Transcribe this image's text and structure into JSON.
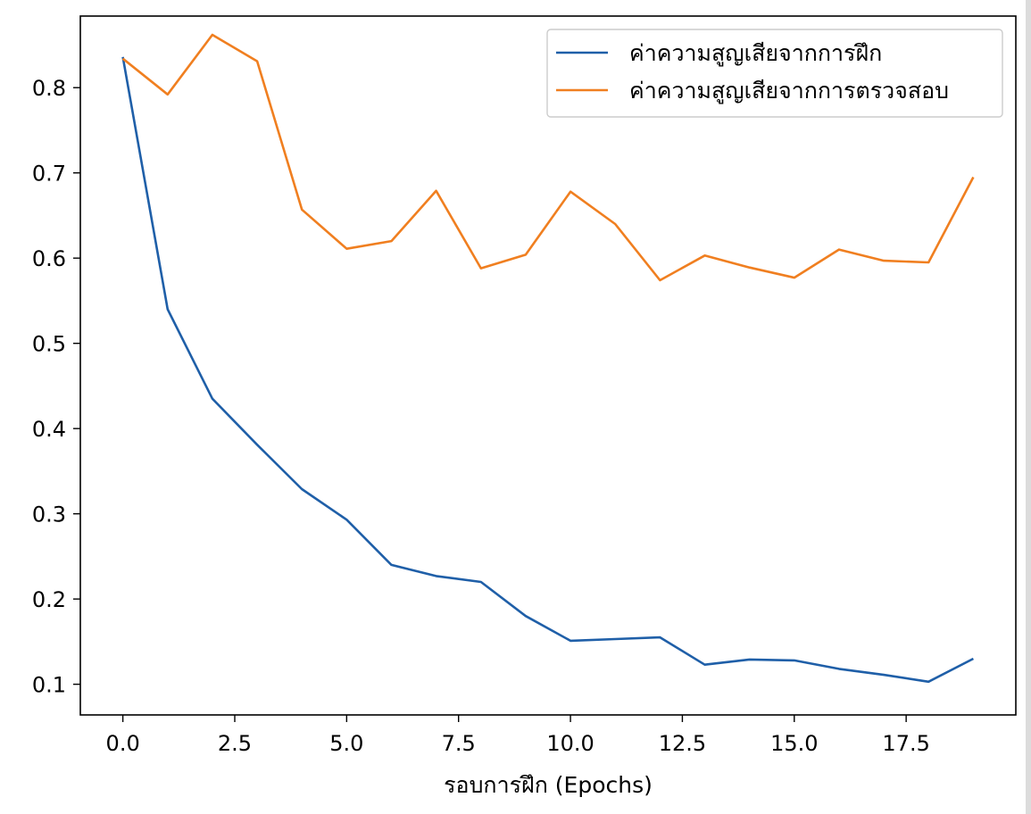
{
  "chart_data": {
    "type": "line",
    "title": "",
    "xlabel": "รอบการฝึก (Epochs)",
    "ylabel": "",
    "xlim": [
      -0.95,
      19.95
    ],
    "ylim": [
      0.064,
      0.884
    ],
    "x_ticks": [
      "0.0",
      "2.5",
      "5.0",
      "7.5",
      "10.0",
      "12.5",
      "15.0",
      "17.5"
    ],
    "x_tick_values": [
      0,
      2.5,
      5,
      7.5,
      10,
      12.5,
      15,
      17.5
    ],
    "y_ticks": [
      "0.1",
      "0.2",
      "0.3",
      "0.4",
      "0.5",
      "0.6",
      "0.7",
      "0.8"
    ],
    "y_tick_values": [
      0.1,
      0.2,
      0.3,
      0.4,
      0.5,
      0.6,
      0.7,
      0.8
    ],
    "grid": false,
    "legend_position": "top-right",
    "x": [
      0,
      1,
      2,
      3,
      4,
      5,
      6,
      7,
      8,
      9,
      10,
      11,
      12,
      13,
      14,
      15,
      16,
      17,
      18,
      19
    ],
    "series": [
      {
        "name": "ค่าความสูญเสียจากการฝึก",
        "color": "#1f5fa8",
        "values": [
          0.836,
          0.54,
          0.435,
          0.381,
          0.329,
          0.293,
          0.24,
          0.227,
          0.22,
          0.18,
          0.151,
          0.153,
          0.155,
          0.123,
          0.129,
          0.128,
          0.118,
          0.111,
          0.103,
          0.13
        ]
      },
      {
        "name": "ค่าความสูญเสียจากการตรวจสอบ",
        "color": "#f07f20",
        "values": [
          0.834,
          0.792,
          0.862,
          0.831,
          0.657,
          0.611,
          0.62,
          0.679,
          0.588,
          0.604,
          0.678,
          0.64,
          0.574,
          0.603,
          0.589,
          0.577,
          0.61,
          0.597,
          0.595,
          0.695
        ]
      }
    ]
  }
}
